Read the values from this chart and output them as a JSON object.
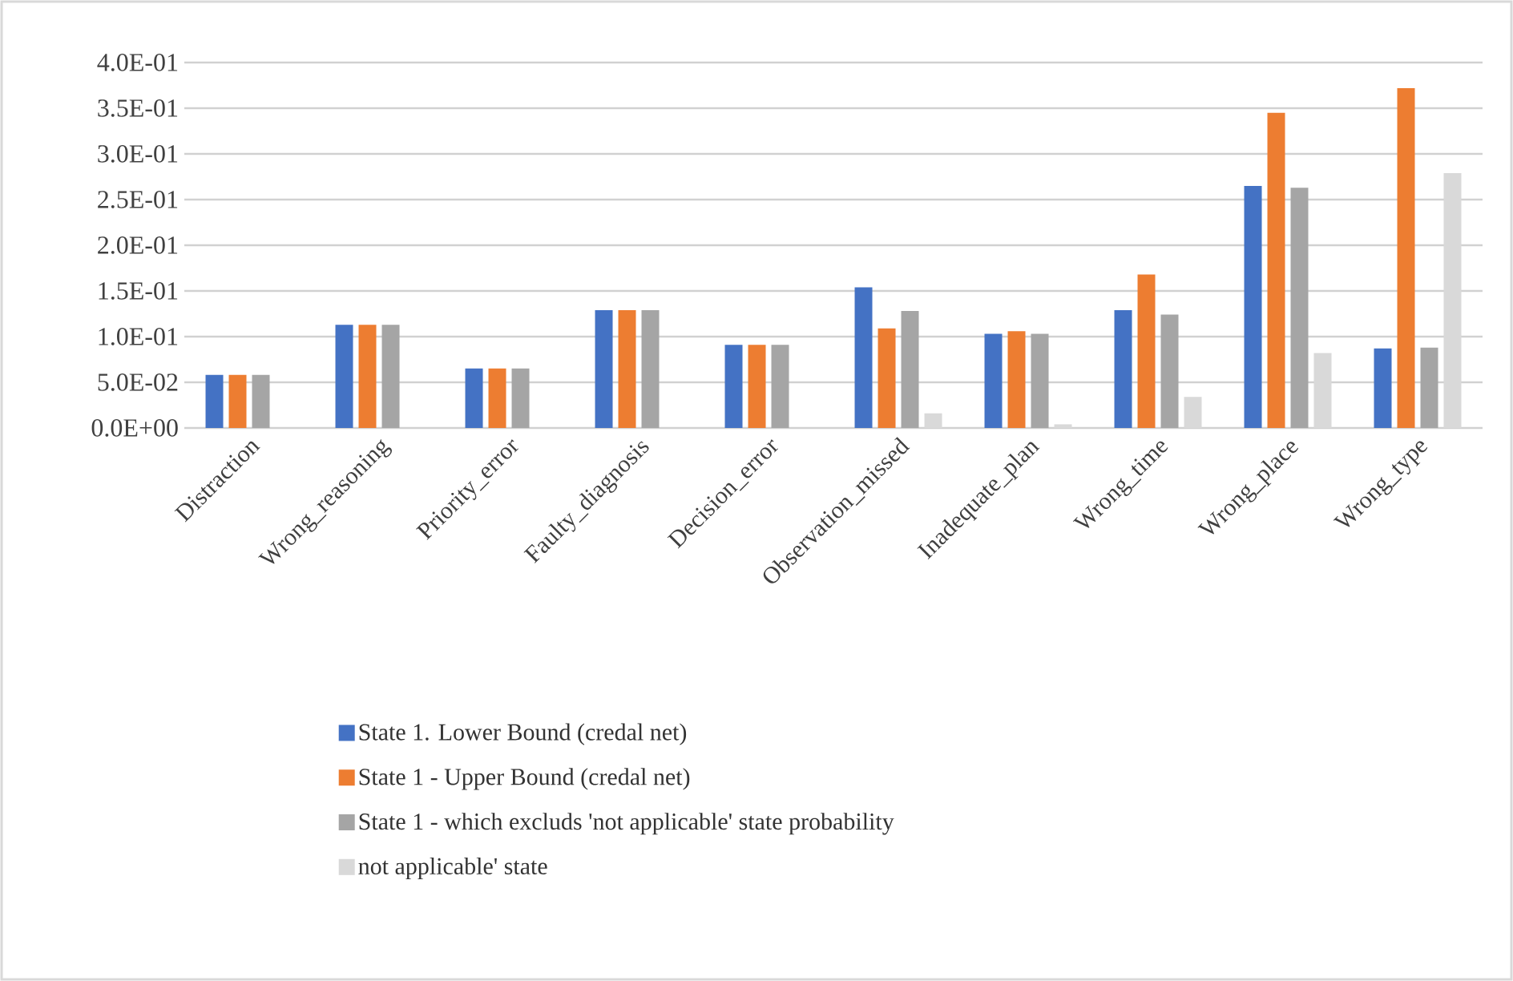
{
  "chart_data": {
    "type": "bar",
    "categories": [
      "Distraction",
      "Wrong_reasoning",
      "Priority_error",
      "Faulty_diagnosis",
      "Decision_error",
      "Observation_missed",
      "Inadequate_plan",
      "Wrong_time",
      "Wrong_place",
      "Wrong_type"
    ],
    "series": [
      {
        "name": "State 1. Lower Bound (credal net)",
        "color": "#4472c4",
        "values": [
          0.058,
          0.113,
          0.065,
          0.129,
          0.091,
          0.154,
          0.103,
          0.129,
          0.265,
          0.087
        ]
      },
      {
        "name": "State 1 - Upper Bound (credal net)",
        "color": "#ed7d31",
        "values": [
          0.058,
          0.113,
          0.065,
          0.129,
          0.091,
          0.109,
          0.106,
          0.168,
          0.345,
          0.372
        ]
      },
      {
        "name": "State 1 - which excluds 'not applicable' state probability",
        "color": "#a5a5a5",
        "values": [
          0.058,
          0.113,
          0.065,
          0.129,
          0.091,
          0.128,
          0.103,
          0.124,
          0.263,
          0.088
        ]
      },
      {
        "name": "not applicable' state",
        "color": "#d9d9d9",
        "values": [
          0,
          0,
          0,
          0,
          0,
          0.016,
          0.004,
          0.034,
          0.082,
          0.279
        ]
      }
    ],
    "ylim": [
      0,
      0.4
    ],
    "yticks": [
      {
        "value": 0,
        "label": "0.0E+00"
      },
      {
        "value": 0.05,
        "label": "5.0E-02"
      },
      {
        "value": 0.1,
        "label": "1.0E-01"
      },
      {
        "value": 0.15,
        "label": "1.5E-01"
      },
      {
        "value": 0.2,
        "label": "2.0E-01"
      },
      {
        "value": 0.25,
        "label": "2.5E-01"
      },
      {
        "value": 0.3,
        "label": "3.0E-01"
      },
      {
        "value": 0.35,
        "label": "3.5E-01"
      },
      {
        "value": 0.4,
        "label": "4.0E-01"
      }
    ],
    "grid": "y",
    "legend": "bottom"
  }
}
